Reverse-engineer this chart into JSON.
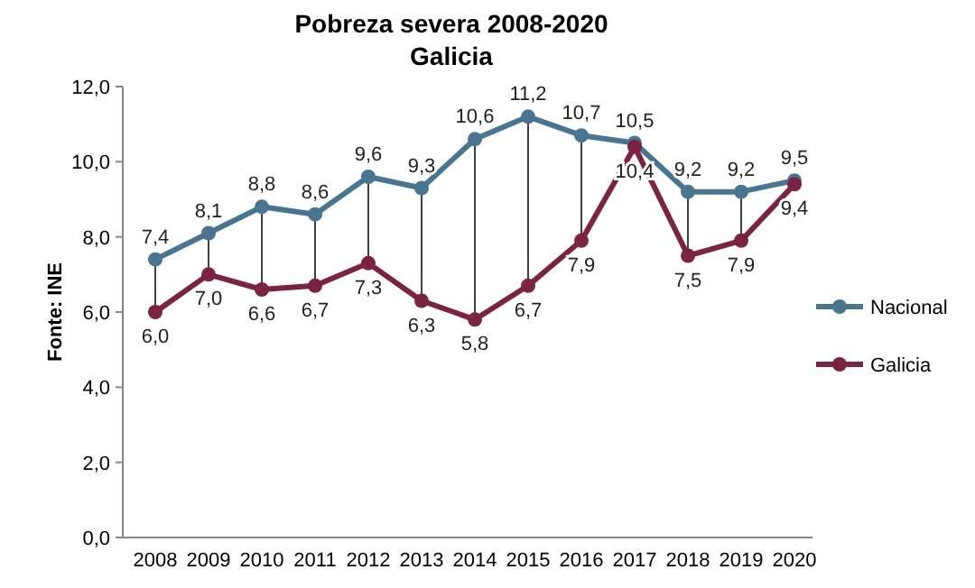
{
  "chart_data": {
    "type": "line",
    "title": "Pobreza severa 2008-2020",
    "subtitle": "Galicia",
    "ylabel": "Fonte: INE",
    "categories": [
      "2008",
      "2009",
      "2010",
      "2011",
      "2012",
      "2013",
      "2014",
      "2015",
      "2016",
      "2017",
      "2018",
      "2019",
      "2020"
    ],
    "series": [
      {
        "name": "Nacional",
        "color": "#4a7590",
        "values": [
          7.4,
          8.1,
          8.8,
          8.6,
          9.6,
          9.3,
          10.6,
          11.2,
          10.7,
          10.5,
          9.2,
          9.2,
          9.5
        ],
        "value_labels": [
          "7,4",
          "8,1",
          "8,8",
          "8,6",
          "9,6",
          "9,3",
          "10,6",
          "11,2",
          "10,7",
          "10,5",
          "9,2",
          "9,2",
          "9,5"
        ]
      },
      {
        "name": "Galicia",
        "color": "#7b2345",
        "values": [
          6.0,
          7.0,
          6.6,
          6.7,
          7.3,
          6.3,
          5.8,
          6.7,
          7.9,
          10.4,
          7.5,
          7.9,
          9.4
        ],
        "value_labels": [
          "6,0",
          "7,0",
          "6,6",
          "6,7",
          "7,3",
          "6,3",
          "5,8",
          "6,7",
          "7,9",
          "10,4",
          "7,5",
          "7,9",
          "9,4"
        ]
      }
    ],
    "ylim": [
      0,
      12
    ],
    "yticks": [
      {
        "value": 0,
        "label": "0,0"
      },
      {
        "value": 2,
        "label": "2,0"
      },
      {
        "value": 4,
        "label": "4,0"
      },
      {
        "value": 6,
        "label": "6,0"
      },
      {
        "value": 8,
        "label": "8,0"
      },
      {
        "value": 10,
        "label": "10,0"
      },
      {
        "value": 12,
        "label": "12,0"
      }
    ],
    "marker": "circle",
    "legend": "right",
    "grid": false
  }
}
